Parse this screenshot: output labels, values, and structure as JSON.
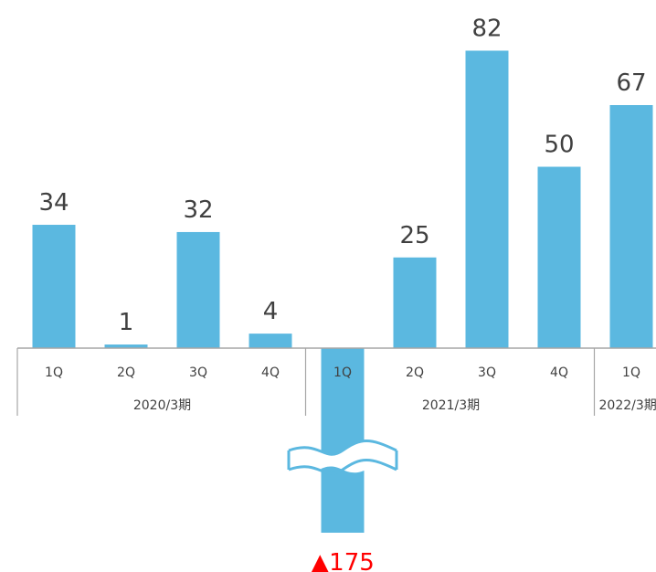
{
  "chart_data": {
    "type": "bar",
    "title": "",
    "xlabel": "",
    "ylabel": "",
    "categories": [
      "1Q",
      "2Q",
      "3Q",
      "4Q",
      "1Q",
      "2Q",
      "3Q",
      "4Q",
      "1Q"
    ],
    "groups": [
      {
        "label": "2020/3期",
        "start": 0,
        "end": 3
      },
      {
        "label": "2021/3期",
        "start": 4,
        "end": 7
      },
      {
        "label": "2022/3期",
        "start": 8,
        "end": 8
      }
    ],
    "values": [
      34,
      1,
      32,
      4,
      -175,
      25,
      82,
      50,
      67
    ],
    "data_labels": [
      "34",
      "1",
      "32",
      "4",
      "▲175",
      "25",
      "82",
      "50",
      "67"
    ],
    "axis_break_on_negative": true,
    "bar_color": "#5bb8e0",
    "negative_label_color": "#ff0000",
    "grid": false
  }
}
